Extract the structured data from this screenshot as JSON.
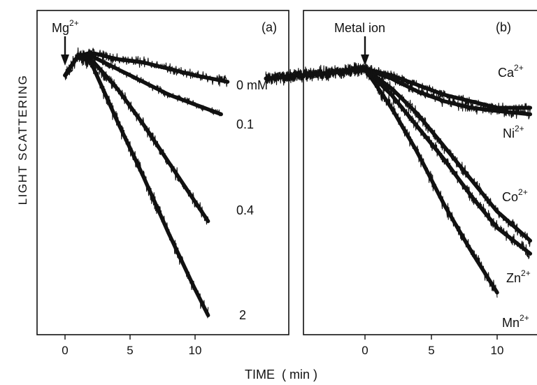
{
  "figure": {
    "ylabel": "LIGHT SCATTERING",
    "xlabel": "TIME  ( min )"
  },
  "chart_data": [
    {
      "type": "line",
      "panel_label": "(a)",
      "arrow_label": "Mg",
      "arrow_label_sup": "2+",
      "arrow_at": 0,
      "x_ticks": [
        "0",
        "5",
        "10"
      ],
      "xlim": [
        -2.7,
        16.2
      ],
      "ylim": [
        0,
        100
      ],
      "series": [
        {
          "name": "0 mM",
          "x": [
            0,
            1,
            2,
            4,
            6,
            8,
            10,
            12.5
          ],
          "y": [
            80,
            86,
            87,
            85,
            84,
            82,
            80,
            78
          ]
        },
        {
          "name": "0.1",
          "x": [
            0,
            1,
            2,
            4,
            6,
            8,
            10,
            12
          ],
          "y": [
            80,
            86,
            86,
            82,
            78,
            74,
            71,
            68
          ]
        },
        {
          "name": "0.4",
          "x": [
            0,
            1,
            2,
            4,
            6,
            8,
            10,
            11
          ],
          "y": [
            80,
            86,
            85,
            76,
            65,
            53,
            41,
            35
          ]
        },
        {
          "name": "2",
          "x": [
            0,
            1,
            2,
            4,
            6,
            8,
            10,
            11
          ],
          "y": [
            80,
            86,
            84,
            66,
            49,
            31,
            14,
            6
          ]
        }
      ]
    },
    {
      "type": "line",
      "panel_label": "(b)",
      "arrow_label": "Metal ion",
      "arrow_at": 0,
      "x_ticks": [
        "0",
        "5",
        "10"
      ],
      "xlim": [
        -7.8,
        12.5
      ],
      "ylim": [
        0,
        100
      ],
      "series": [
        {
          "name": "Ca",
          "sup": "2+",
          "x": [
            -7.5,
            -5,
            -2,
            0,
            2,
            4,
            6,
            8,
            10,
            12.5
          ],
          "y": [
            79,
            80,
            81,
            82,
            80,
            77,
            74,
            72,
            70,
            70
          ]
        },
        {
          "name": "Ni",
          "sup": "2+",
          "x": [
            -7.5,
            -5,
            -2,
            0,
            2,
            4,
            6,
            8,
            10,
            12.5
          ],
          "y": [
            79,
            80,
            81,
            82,
            79,
            75,
            72,
            70,
            69,
            68
          ]
        },
        {
          "name": "Co",
          "sup": "2+",
          "x": [
            -7.5,
            -5,
            -2,
            0,
            2,
            4,
            6,
            8,
            10,
            12.5
          ],
          "y": [
            79,
            80,
            81,
            82,
            76,
            68,
            58,
            48,
            38,
            29
          ]
        },
        {
          "name": "Zn",
          "sup": "2+",
          "x": [
            -7.5,
            -5,
            -2,
            0,
            2,
            4,
            6,
            8,
            10,
            12.5
          ],
          "y": [
            79,
            80,
            81,
            82,
            74,
            64,
            54,
            43,
            33,
            25
          ]
        },
        {
          "name": "Mn",
          "sup": "2+",
          "x": [
            -7.5,
            -5,
            -2,
            0,
            2,
            4,
            6,
            8,
            10
          ],
          "y": [
            79,
            80,
            81,
            82,
            70,
            56,
            40,
            26,
            13
          ]
        }
      ]
    }
  ]
}
